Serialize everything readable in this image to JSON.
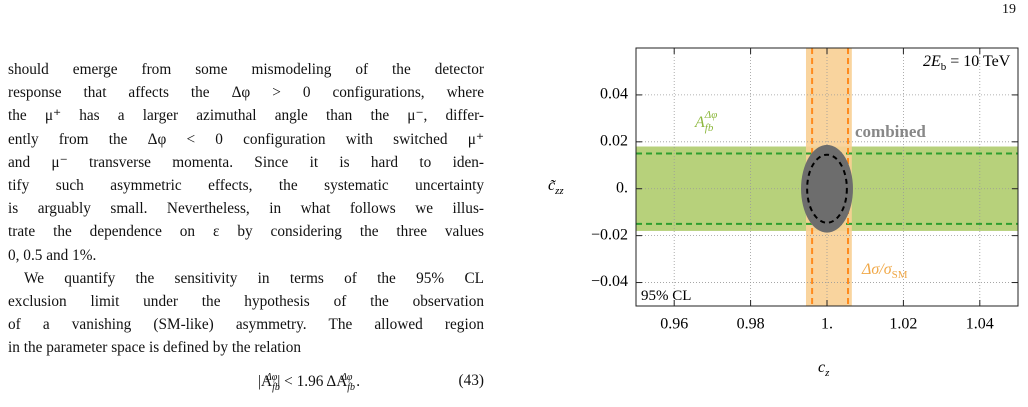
{
  "page_number": "19",
  "paragraphs": [
    [
      "should emerge from some mismodeling of the detector",
      "response that affects the Δφ > 0 configurations, where",
      "the μ⁺ has a larger azimuthal angle than the μ⁻, differ-",
      "ently from the Δφ < 0 configuration with switched μ⁺",
      "and μ⁻ transverse momenta. Since it is hard to iden-",
      "tify such asymmetric effects, the systematic uncertainty",
      "is arguably small. Nevertheless, in what follows we illus-",
      "trate the dependence on ε by considering the three values",
      "0, 0.5 and 1%."
    ],
    [
      "We quantify the sensitivity in terms of the 95% CL",
      "exclusion limit under the hypothesis of the observation",
      "of a vanishing (SM-like) asymmetry. The allowed region",
      "in the parameter space is defined by the relation"
    ]
  ],
  "equation": {
    "parts": [
      "|A",
      "fb",
      "Δφ",
      "| < 1.96 ΔA",
      "fb",
      "Δφ",
      " ."
    ],
    "number": "(43)"
  },
  "chart_data": {
    "type": "region",
    "xlabel": {
      "base": "c",
      "sub": "z"
    },
    "ylabel": {
      "base": "c̃",
      "sub": "zz"
    },
    "xlim": [
      0.95,
      1.05
    ],
    "ylim": [
      -0.05,
      0.06
    ],
    "xticks": [
      0.96,
      0.98,
      {
        "value": 1,
        "label": "1."
      },
      1.02,
      1.04
    ],
    "yticks": [
      {
        "value": -0.04,
        "label": "−0.04"
      },
      {
        "value": -0.02,
        "label": "−0.02"
      },
      {
        "value": 0,
        "label": "0."
      },
      0.02,
      0.04
    ],
    "grid": true,
    "annotations": [
      {
        "base": "2E",
        "sub": "b",
        "rest": " = 10 TeV"
      },
      {
        "base": "95% CL"
      }
    ],
    "regions": [
      {
        "name": {
          "base": "A",
          "sub": "fb",
          "sup": "Δφ"
        },
        "color": "#b7d17b",
        "axis": "y",
        "range": [
          -0.018,
          0.018
        ],
        "bounds": [
          -0.015,
          0.015
        ],
        "bound_color": "#2e9e2e"
      },
      {
        "name": {
          "base": "Δσ/σ",
          "sub": "SM"
        },
        "color": "#f8cf93",
        "axis": "x",
        "range": [
          0.9945,
          1.0065
        ],
        "bounds": [
          0.9961,
          1.0055
        ],
        "bound_color": "#ff8a1c"
      },
      {
        "name": {
          "base": "combined"
        },
        "color": "#6d6d6d",
        "center": [
          1,
          0
        ],
        "radius": [
          0.0068,
          0.0187
        ],
        "bound_radius": [
          0.0052,
          0.0145
        ],
        "bound_color": "#000000"
      }
    ]
  }
}
